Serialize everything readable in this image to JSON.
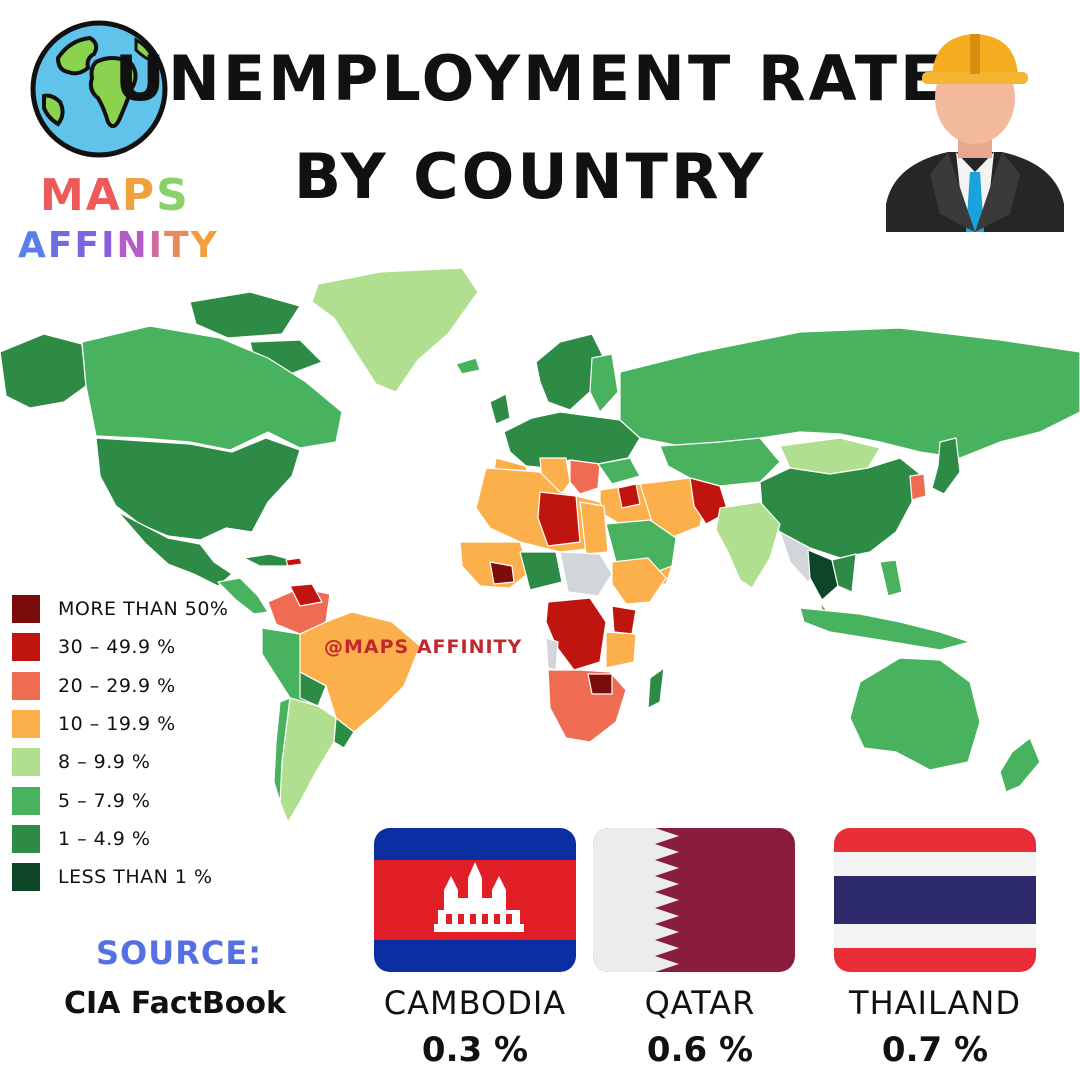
{
  "header": {
    "title_line1": "UNEMPLOYMENT RATE",
    "title_line2": "BY COUNTRY"
  },
  "brand": {
    "line1": "MAPS",
    "line2": "AFFINITY"
  },
  "watermark": "@MAPS AFFINITY",
  "legend": {
    "items": [
      {
        "label": "MORE THAN 50%",
        "color": "#7b0c0c"
      },
      {
        "label": "30 – 49.9 %",
        "color": "#c0140f"
      },
      {
        "label": "20 – 29.9 %",
        "color": "#ef6b51"
      },
      {
        "label": "10 – 19.9 %",
        "color": "#fbb04b"
      },
      {
        "label": "8 – 9.9 %",
        "color": "#afdf8f"
      },
      {
        "label": "5 – 7.9 %",
        "color": "#48b25e"
      },
      {
        "label": "1 – 4.9 %",
        "color": "#2d8b45"
      },
      {
        "label": "LESS THAN 1 %",
        "color": "#0c4527"
      }
    ]
  },
  "source": {
    "label": "SOURCE:",
    "value": "CIA FactBook"
  },
  "highlights": [
    {
      "country": "CAMBODIA",
      "value": "0.3 %"
    },
    {
      "country": "QATAR",
      "value": "0.6 %"
    },
    {
      "country": "THAILAND",
      "value": "0.7 %"
    }
  ],
  "colors": {
    "cambodia_blue": "#0b2fa3",
    "cambodia_red": "#e21f26",
    "qatar_maroon": "#8a1c3c",
    "thailand_red": "#ea2e37",
    "thailand_blue": "#2c2a6a",
    "no_data": "#d3d6d8"
  }
}
